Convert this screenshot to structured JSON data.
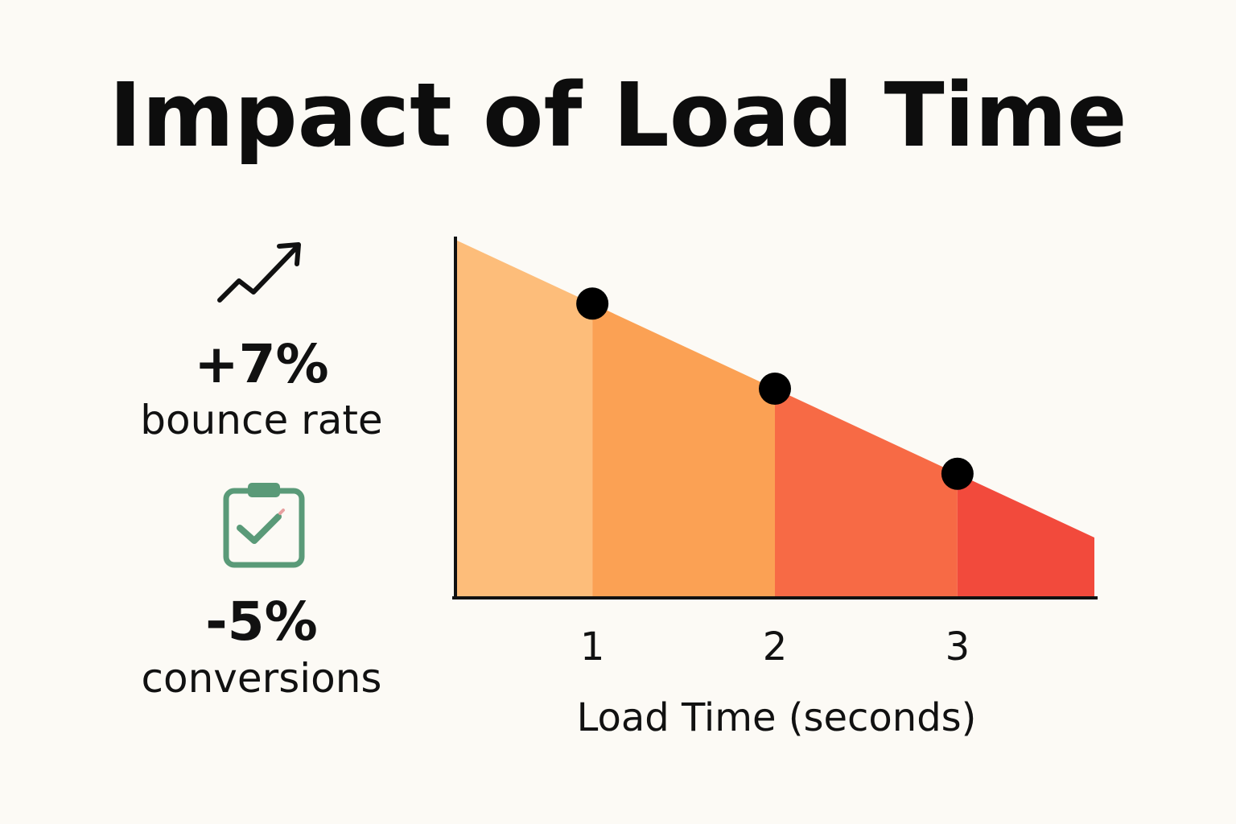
{
  "title": "Impact of Load Time",
  "stats": {
    "bounce": {
      "value": "+7%",
      "label": "bounce rate",
      "icon": "trend-up-arrow-icon"
    },
    "conversions": {
      "value": "-5%",
      "label": "conversions",
      "icon": "clipboard-check-icon"
    }
  },
  "colors": {
    "background": "#fcfaf5",
    "segment1": "#fdbd7a",
    "segment2": "#fba154",
    "segment3": "#f76a45",
    "segment4": "#f24a3c",
    "points": "#000000",
    "clipboard": "#5a9a78"
  },
  "chart_data": {
    "type": "area",
    "xlabel": "Load Time (seconds)",
    "ylabel": "",
    "x_ticks": [
      1,
      2,
      3
    ],
    "xlim": [
      0.25,
      3.75
    ],
    "points": [
      {
        "x": 1,
        "label": "1"
      },
      {
        "x": 2,
        "label": "2"
      },
      {
        "x": 3,
        "label": "3"
      }
    ],
    "grid": false,
    "legend": "none"
  }
}
